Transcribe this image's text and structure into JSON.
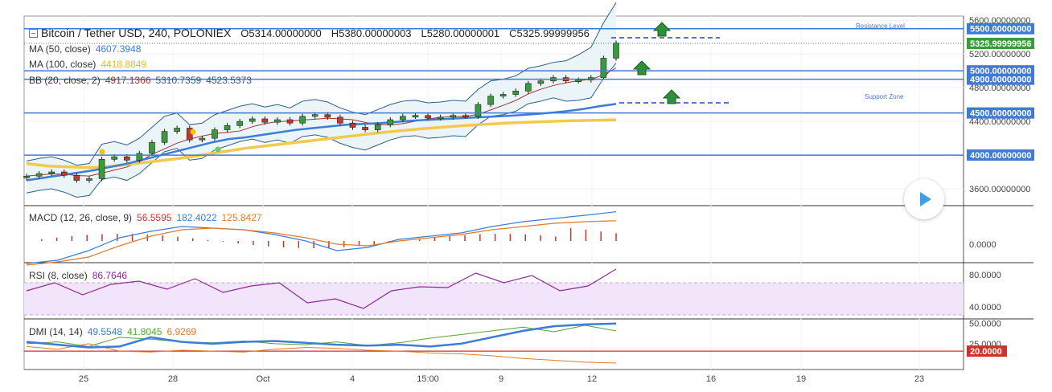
{
  "header": {
    "symbol": "Bitcoin / Tether USD, 240, POLONIEX",
    "open": "O5314.00000000",
    "high": "H5380.00000003",
    "low": "L5280.00000001",
    "close": "C5325.99999956"
  },
  "indicators": {
    "ma50": {
      "label": "MA (50, close)",
      "value": "4607.3948",
      "color": "#3b7dd8"
    },
    "ma100": {
      "label": "MA (100, close)",
      "value": "4418.8849",
      "color": "#f2c94c"
    },
    "bb": {
      "label": "BB (20, close, 2)",
      "basis": "4917.1366",
      "upper": "5310.7359",
      "lower": "4523.5373",
      "basis_color": "#a0332f",
      "band_color": "#2d5f8a"
    },
    "macd": {
      "label": "MACD (12, 26, close, 9)",
      "hist": "56.5595",
      "macd": "182.4022",
      "signal": "125.8427"
    },
    "rsi": {
      "label": "RSI (8, close)",
      "value": "86.7646"
    },
    "dmi": {
      "label": "DMI (14, 14)",
      "adx": "49.5548",
      "plus_di": "41.8045",
      "minus_di": "6.9269"
    }
  },
  "annotations": {
    "resistance": "Resistance Level",
    "support": "Support Zone"
  },
  "price_axis": {
    "ticks": [
      "5600.00000000",
      "5200.00000000",
      "4800.00000000",
      "4400.00000000",
      "3600.00000000"
    ],
    "level_labels": [
      "5500.00000000",
      "5000.00000000",
      "4900.00000000",
      "4500.00000000",
      "4000.00000000"
    ],
    "current": "5325.99999956"
  },
  "macd_axis": {
    "ticks": [
      "0.0000"
    ]
  },
  "rsi_axis": {
    "ticks": [
      "80.0000",
      "40.0000"
    ]
  },
  "dmi_axis": {
    "ticks": [
      "50.0000",
      "25.0000"
    ],
    "level": "20.0000"
  },
  "time_axis": {
    "labels": [
      "25",
      "28",
      "Oct",
      "4",
      "15:00",
      "9",
      "12",
      "16",
      "19",
      "23"
    ]
  },
  "colors": {
    "up": "#3a9b3a",
    "down": "#c0392b",
    "level_line": "#3f7bd6",
    "rsi_fill": "#f1e4fb",
    "rsi_line": "#8b2a99",
    "macd_line": "#3b7dd8",
    "signal_line": "#e07b2b",
    "hist": "#c0392b",
    "adx": "#3b7dd8",
    "plus_di": "#5aa03a",
    "minus_di": "#e07b2b"
  },
  "chart_data": {
    "type": "candlestick",
    "title": "Bitcoin / Tether USD, 240, POLONIEX",
    "horizontal_levels": [
      5500,
      5000,
      4900,
      4500,
      4000
    ],
    "ylim": [
      3400,
      5650
    ],
    "current_price": 5325.99999956,
    "close_series": [
      3750,
      3780,
      3800,
      3760,
      3700,
      3720,
      3950,
      3980,
      3940,
      4020,
      4150,
      4280,
      4320,
      4180,
      4200,
      4300,
      4350,
      4400,
      4430,
      4390,
      4420,
      4380,
      4460,
      4480,
      4450,
      4380,
      4330,
      4300,
      4360,
      4420,
      4460,
      4470,
      4440,
      4450,
      4470,
      4460,
      4600,
      4700,
      4720,
      4760,
      4850,
      4880,
      4920,
      4880,
      4890,
      4920,
      5150,
      5330
    ],
    "ma50": [
      3700,
      3730,
      3760,
      3790,
      3820,
      3860,
      3900,
      3950,
      4000,
      4050,
      4100,
      4150,
      4190,
      4210,
      4240,
      4270,
      4300,
      4320,
      4340,
      4360,
      4370,
      4380,
      4395,
      4410,
      4420,
      4430,
      4440,
      4450,
      4460,
      4470,
      4485,
      4500,
      4520,
      4545,
      4580,
      4607
    ],
    "ma100": [
      3900,
      3870,
      3860,
      3850,
      3870,
      3900,
      3930,
      3960,
      4000,
      4040,
      4080,
      4110,
      4140,
      4170,
      4200,
      4230,
      4260,
      4285,
      4310,
      4330,
      4350,
      4365,
      4380,
      4390,
      4400,
      4408,
      4413,
      4418
    ],
    "macd": {
      "macd": [
        -140,
        -120,
        -60,
        20,
        60,
        90,
        80,
        70,
        40,
        0,
        -60,
        -40,
        10,
        30,
        50,
        90,
        120,
        140,
        160,
        182
      ],
      "signal": [
        -150,
        -130,
        -100,
        -30,
        30,
        70,
        80,
        70,
        50,
        20,
        -20,
        -30,
        0,
        20,
        40,
        70,
        90,
        110,
        120,
        126
      ]
    },
    "rsi": [
      60,
      70,
      55,
      68,
      72,
      62,
      75,
      58,
      66,
      70,
      45,
      50,
      38,
      60,
      65,
      64,
      82,
      70,
      79,
      60,
      66,
      87
    ],
    "dmi": {
      "adx": [
        30,
        27,
        24,
        25,
        35,
        30,
        28,
        30,
        31,
        29,
        27,
        26,
        27,
        25,
        28,
        35,
        42,
        47,
        49,
        50
      ],
      "plus_di": [
        28,
        30,
        25,
        35,
        33,
        30,
        29,
        31,
        28,
        27,
        30,
        26,
        29,
        34,
        38,
        42,
        46,
        41,
        48,
        42
      ],
      "minus_di": [
        25,
        22,
        28,
        20,
        19,
        21,
        20,
        19,
        22,
        24,
        23,
        21,
        20,
        18,
        17,
        15,
        12,
        10,
        8,
        7
      ]
    }
  }
}
